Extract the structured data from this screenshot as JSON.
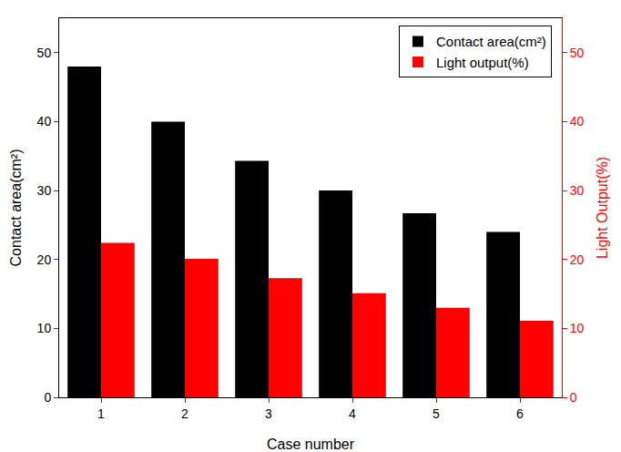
{
  "chart_data": {
    "type": "bar",
    "x_label": "Case number",
    "y_label": "Contact area(cm²)",
    "y2_label": "Light Output(%)",
    "categories": [
      "1",
      "2",
      "3",
      "4",
      "5",
      "6"
    ],
    "series": [
      {
        "name": "Contact area(cm²)",
        "color": "#000000",
        "values": [
          48,
          40,
          34.3,
          30,
          26.7,
          24
        ]
      },
      {
        "name": "Light output(%)",
        "color": "#ff0000",
        "axis": "y2",
        "values": [
          22.4,
          20.1,
          17.3,
          15.1,
          13,
          11.1
        ]
      }
    ],
    "ylim": [
      0,
      55
    ],
    "yticks": [
      0,
      10,
      20,
      30,
      40,
      50
    ],
    "y2lim": [
      0,
      55
    ],
    "y2ticks": [
      0,
      10,
      20,
      30,
      40,
      50
    ],
    "legend": "top right",
    "grid": false
  }
}
